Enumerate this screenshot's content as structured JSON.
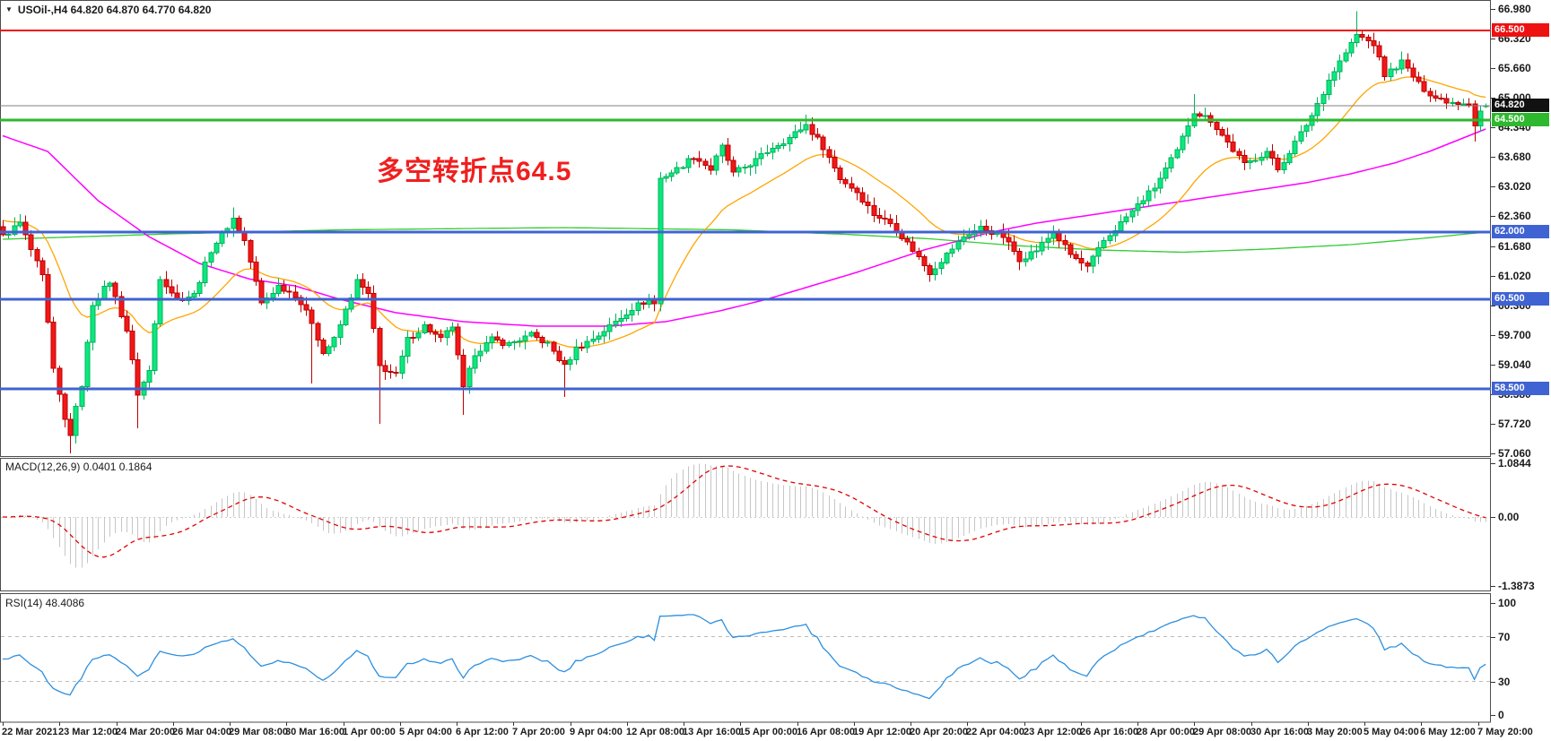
{
  "header": {
    "symbol_info": "USOil-,H4 64.820 64.870 64.770 64.820"
  },
  "annotation": {
    "text": "多空转折点64.5",
    "color": "#f01f1f"
  },
  "indicators": {
    "macd": {
      "label": "MACD(12,26,9) 0.0401 0.1864",
      "fast": 12,
      "slow": 26,
      "signal_period": 9,
      "value_main": 0.0401,
      "value_signal": 0.1864,
      "axis_labels": [
        "1.0844",
        "0.00",
        "-1.3873"
      ]
    },
    "rsi": {
      "label": "RSI(14) 48.4086",
      "period": 14,
      "value": 48.4086,
      "axis_labels": [
        "100",
        "70",
        "30",
        "0"
      ],
      "levels": [
        70,
        30
      ]
    }
  },
  "colors": {
    "up": "#0ce87e",
    "up_border": "#00b35c",
    "down": "#f31717",
    "down_border": "#bb0000",
    "ma_fast": "#ffa500",
    "ma_mid": "#ff00ff",
    "ma_slow": "#33cc33",
    "macd_hist": "#c6c6c6",
    "macd_signal": "#e00000",
    "rsi_line": "#2b8fe0",
    "rsi_level": "#bbbbbb",
    "level_blue": "#3f63d2",
    "level_green": "#2eb82e",
    "level_red": "#ee1111",
    "price_marker": "#808080",
    "price_badge_bg": "#111111",
    "panel_border": "#4d4d4d",
    "text": "#1a1a1a"
  },
  "chart_data": {
    "type": "candlestick",
    "symbol": "USOil-",
    "timeframe": "H4",
    "title": "USOil-,H4",
    "current_bar": {
      "open": 64.82,
      "high": 64.87,
      "low": 64.77,
      "close": 64.82
    },
    "n_candles": 265,
    "price_axis_ticks": [
      "66.980",
      "66.320",
      "65.660",
      "65.000",
      "64.340",
      "63.680",
      "63.020",
      "62.360",
      "61.680",
      "61.020",
      "60.360",
      "59.700",
      "59.040",
      "58.380",
      "57.720",
      "57.060"
    ],
    "x_labels": [
      "22 Mar 2021",
      "23 Mar 12:00",
      "24 Mar 20:00",
      "26 Mar 04:00",
      "29 Mar 08:00",
      "30 Mar 16:00",
      "1 Apr 00:00",
      "5 Apr 04:00",
      "6 Apr 12:00",
      "7 Apr 20:00",
      "9 Apr 04:00",
      "12 Apr 08:00",
      "13 Apr 16:00",
      "15 Apr 00:00",
      "16 Apr 08:00",
      "19 Apr 12:00",
      "20 Apr 20:00",
      "22 Apr 04:00",
      "23 Apr 12:00",
      "26 Apr 16:00",
      "28 Apr 00:00",
      "29 Apr 08:00",
      "30 Apr 16:00",
      "3 May 20:00",
      "5 May 04:00",
      "6 May 12:00",
      "7 May 20:00"
    ],
    "horizontal_levels": [
      {
        "price": 66.5,
        "label": "66.500",
        "color": "#ee1111",
        "width": 2
      },
      {
        "price": 64.5,
        "label": "64.500",
        "color": "#2eb82e",
        "width": 3
      },
      {
        "price": 62.0,
        "label": "62.000",
        "color": "#3f63d2",
        "width": 3
      },
      {
        "price": 60.5,
        "label": "60.500",
        "color": "#3f63d2",
        "width": 3
      },
      {
        "price": 58.5,
        "label": "58.500",
        "color": "#3f63d2",
        "width": 3
      }
    ],
    "current_price_line": {
      "price": 64.82,
      "label": "64.820",
      "line_color": "#808080",
      "badge_color": "#111111"
    },
    "close_anchors": [
      [
        0,
        61.9
      ],
      [
        3,
        62.2
      ],
      [
        7,
        61.0
      ],
      [
        9,
        58.9
      ],
      [
        11,
        57.8
      ],
      [
        12,
        57.5
      ],
      [
        14,
        58.6
      ],
      [
        16,
        60.4
      ],
      [
        19,
        60.9
      ],
      [
        22,
        59.8
      ],
      [
        24,
        58.4
      ],
      [
        26,
        58.9
      ],
      [
        28,
        61.0
      ],
      [
        31,
        60.5
      ],
      [
        34,
        60.6
      ],
      [
        37,
        61.6
      ],
      [
        41,
        62.3
      ],
      [
        43,
        61.8
      ],
      [
        46,
        60.4
      ],
      [
        49,
        60.8
      ],
      [
        52,
        60.6
      ],
      [
        55,
        60.0
      ],
      [
        57,
        59.3
      ],
      [
        59,
        59.6
      ],
      [
        63,
        60.9
      ],
      [
        65,
        60.6
      ],
      [
        67,
        59.0
      ],
      [
        70,
        58.8
      ],
      [
        72,
        59.6
      ],
      [
        75,
        59.9
      ],
      [
        78,
        59.6
      ],
      [
        80,
        59.9
      ],
      [
        82,
        58.5
      ],
      [
        84,
        59.3
      ],
      [
        87,
        59.6
      ],
      [
        90,
        59.5
      ],
      [
        94,
        59.7
      ],
      [
        97,
        59.5
      ],
      [
        100,
        59.0
      ],
      [
        102,
        59.4
      ],
      [
        106,
        59.7
      ],
      [
        109,
        60.0
      ],
      [
        112,
        60.3
      ],
      [
        115,
        60.5
      ],
      [
        116,
        60.4
      ],
      [
        117,
        63.2
      ],
      [
        120,
        63.4
      ],
      [
        123,
        63.7
      ],
      [
        126,
        63.4
      ],
      [
        128,
        63.9
      ],
      [
        130,
        63.3
      ],
      [
        134,
        63.6
      ],
      [
        137,
        63.9
      ],
      [
        140,
        64.1
      ],
      [
        143,
        64.4
      ],
      [
        146,
        63.9
      ],
      [
        149,
        63.2
      ],
      [
        152,
        62.9
      ],
      [
        155,
        62.4
      ],
      [
        158,
        62.2
      ],
      [
        162,
        61.6
      ],
      [
        165,
        61.1
      ],
      [
        168,
        61.5
      ],
      [
        171,
        61.9
      ],
      [
        174,
        62.1
      ],
      [
        178,
        61.9
      ],
      [
        181,
        61.4
      ],
      [
        184,
        61.6
      ],
      [
        187,
        62.0
      ],
      [
        190,
        61.5
      ],
      [
        193,
        61.2
      ],
      [
        196,
        61.8
      ],
      [
        199,
        62.2
      ],
      [
        202,
        62.6
      ],
      [
        205,
        63.0
      ],
      [
        209,
        63.8
      ],
      [
        212,
        64.7
      ],
      [
        215,
        64.5
      ],
      [
        218,
        64.0
      ],
      [
        221,
        63.5
      ],
      [
        225,
        63.8
      ],
      [
        227,
        63.4
      ],
      [
        230,
        64.0
      ],
      [
        233,
        64.6
      ],
      [
        236,
        65.4
      ],
      [
        239,
        66.0
      ],
      [
        241,
        66.4
      ],
      [
        244,
        66.2
      ],
      [
        246,
        65.5
      ],
      [
        249,
        65.8
      ],
      [
        252,
        65.3
      ],
      [
        255,
        65.0
      ],
      [
        258,
        64.9
      ],
      [
        261,
        64.9
      ],
      [
        262,
        64.4
      ],
      [
        263,
        64.7
      ],
      [
        264,
        64.82
      ]
    ],
    "wick_overrides": [
      {
        "i": 12,
        "low": 57.06
      },
      {
        "i": 24,
        "low": 57.62
      },
      {
        "i": 41,
        "high": 62.55
      },
      {
        "i": 55,
        "low": 58.62
      },
      {
        "i": 67,
        "low": 57.72
      },
      {
        "i": 82,
        "low": 57.92
      },
      {
        "i": 100,
        "low": 58.32
      },
      {
        "i": 143,
        "high": 64.62
      },
      {
        "i": 212,
        "high": 65.08
      },
      {
        "i": 241,
        "high": 66.93
      },
      {
        "i": 262,
        "low": 64.02
      }
    ],
    "moving_averages": [
      {
        "name": "fast-ma-orange",
        "color": "#ffa500",
        "type": "ema",
        "period": 20,
        "seed": 62.3
      },
      {
        "name": "mid-ma-magenta",
        "color": "#ff00ff",
        "type": "anchors",
        "points": [
          [
            0,
            64.15
          ],
          [
            8,
            63.8
          ],
          [
            17,
            62.7
          ],
          [
            26,
            61.9
          ],
          [
            35,
            61.3
          ],
          [
            44,
            60.95
          ],
          [
            52,
            60.8
          ],
          [
            60,
            60.5
          ],
          [
            70,
            60.2
          ],
          [
            82,
            60.0
          ],
          [
            95,
            59.9
          ],
          [
            108,
            59.9
          ],
          [
            118,
            60.0
          ],
          [
            128,
            60.25
          ],
          [
            136,
            60.5
          ],
          [
            144,
            60.8
          ],
          [
            152,
            61.1
          ],
          [
            158,
            61.35
          ],
          [
            164,
            61.6
          ],
          [
            170,
            61.8
          ],
          [
            176,
            62.0
          ],
          [
            184,
            62.2
          ],
          [
            192,
            62.35
          ],
          [
            200,
            62.5
          ],
          [
            208,
            62.65
          ],
          [
            216,
            62.8
          ],
          [
            224,
            62.95
          ],
          [
            232,
            63.1
          ],
          [
            240,
            63.3
          ],
          [
            248,
            63.55
          ],
          [
            254,
            63.8
          ],
          [
            259,
            64.05
          ],
          [
            264,
            64.3
          ]
        ]
      },
      {
        "name": "slow-ma-green",
        "color": "#33cc33",
        "type": "anchors",
        "points": [
          [
            0,
            61.84
          ],
          [
            30,
            61.96
          ],
          [
            60,
            62.05
          ],
          [
            100,
            62.1
          ],
          [
            130,
            62.05
          ],
          [
            150,
            61.95
          ],
          [
            165,
            61.85
          ],
          [
            180,
            61.7
          ],
          [
            195,
            61.6
          ],
          [
            210,
            61.55
          ],
          [
            225,
            61.62
          ],
          [
            240,
            61.72
          ],
          [
            252,
            61.85
          ],
          [
            264,
            62.0
          ]
        ]
      }
    ],
    "macd_scale": {
      "max": 1.0844,
      "min": -1.3873,
      "zero": 0.0
    },
    "rsi_scale": {
      "max": 100,
      "min": 0
    }
  }
}
